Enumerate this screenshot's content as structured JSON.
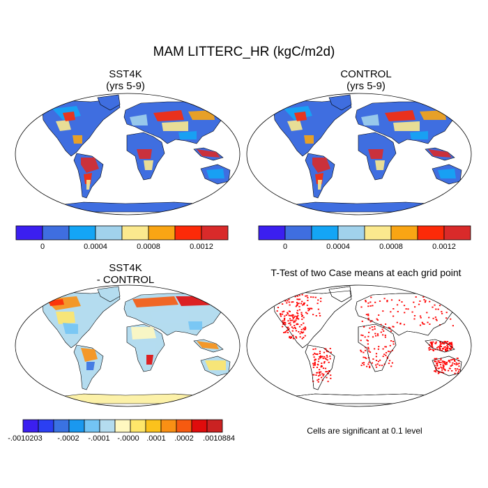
{
  "title": "MAM LITTERC_HR (kgC/m2d)",
  "panels": [
    {
      "title_line1": "SST4K",
      "title_line2": "(yrs 5-9)",
      "type": "field"
    },
    {
      "title_line1": "CONTROL",
      "title_line2": "(yrs 5-9)",
      "type": "field"
    },
    {
      "title_line1": "SST4K",
      "title_line2": "- CONTROL",
      "type": "difference"
    },
    {
      "title_line1": "T-Test of two Case means at each grid point",
      "title_line2": "",
      "type": "significance"
    }
  ],
  "colorbar_field": {
    "colors": [
      "#3b1ff0",
      "#3f6ee0",
      "#14a5f5",
      "#a1d2ec",
      "#fbe98e",
      "#f9a514",
      "#fc2a08",
      "#d92a2a"
    ],
    "tick_labels": [
      "0",
      "0.0004",
      "0.0008",
      "0.0012"
    ]
  },
  "colorbar_diff": {
    "colors": [
      "#3b1ff0",
      "#2b3ff2",
      "#3a72e2",
      "#1a98ef",
      "#73c4f4",
      "#b4dcef",
      "#fff8c0",
      "#fee66a",
      "#fbc21c",
      "#f99014",
      "#f65a10",
      "#e00c0c",
      "#ca2222"
    ],
    "tick_labels": [
      "-.0010203",
      "-.0002",
      "-.0001",
      "-.0000",
      ".0001",
      ".0002",
      ".0010884"
    ]
  },
  "significance_note": "Cells are significant at 0.1 level",
  "colors": {
    "ocean": "#ffffff",
    "land_outline": "#000000",
    "antarctica_field": "#3f6ee0",
    "antarctica_diff": "#fcf1a8",
    "significant": "#ff0000"
  }
}
